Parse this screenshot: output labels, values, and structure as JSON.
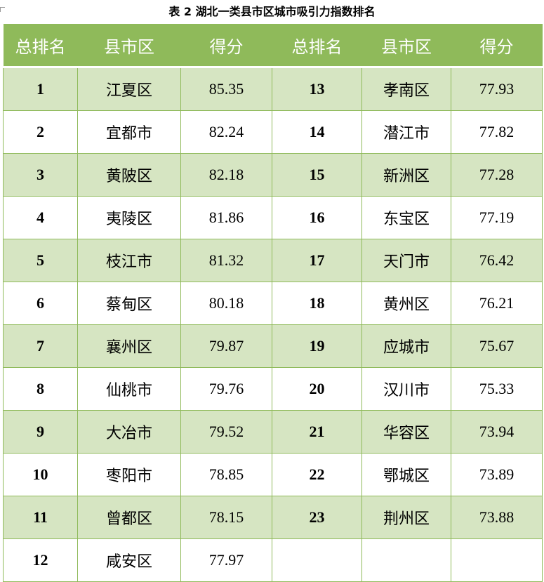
{
  "caption": "表 2 湖北一类县市区城市吸引力指数排名",
  "headers": [
    "总排名",
    "县市区",
    "得分",
    "总排名",
    "县市区",
    "得分"
  ],
  "rows": [
    {
      "rank_a": "1",
      "name_a": "江夏区",
      "score_a": "85.35",
      "rank_b": "13",
      "name_b": "孝南区",
      "score_b": "77.93"
    },
    {
      "rank_a": "2",
      "name_a": "宜都市",
      "score_a": "82.24",
      "rank_b": "14",
      "name_b": "潜江市",
      "score_b": "77.82"
    },
    {
      "rank_a": "3",
      "name_a": "黄陂区",
      "score_a": "82.18",
      "rank_b": "15",
      "name_b": "新洲区",
      "score_b": "77.28"
    },
    {
      "rank_a": "4",
      "name_a": "夷陵区",
      "score_a": "81.86",
      "rank_b": "16",
      "name_b": "东宝区",
      "score_b": "77.19"
    },
    {
      "rank_a": "5",
      "name_a": "枝江市",
      "score_a": "81.32",
      "rank_b": "17",
      "name_b": "天门市",
      "score_b": "76.42"
    },
    {
      "rank_a": "6",
      "name_a": "蔡甸区",
      "score_a": "80.18",
      "rank_b": "18",
      "name_b": "黄州区",
      "score_b": "76.21"
    },
    {
      "rank_a": "7",
      "name_a": "襄州区",
      "score_a": "79.87",
      "rank_b": "19",
      "name_b": "应城市",
      "score_b": "75.67"
    },
    {
      "rank_a": "8",
      "name_a": "仙桃市",
      "score_a": "79.76",
      "rank_b": "20",
      "name_b": "汉川市",
      "score_b": "75.33"
    },
    {
      "rank_a": "9",
      "name_a": "大冶市",
      "score_a": "79.52",
      "rank_b": "21",
      "name_b": "华容区",
      "score_b": "73.94"
    },
    {
      "rank_a": "10",
      "name_a": "枣阳市",
      "score_a": "78.85",
      "rank_b": "22",
      "name_b": "鄂城区",
      "score_b": "73.89"
    },
    {
      "rank_a": "11",
      "name_a": "曾都区",
      "score_a": "78.15",
      "rank_b": "23",
      "name_b": "荆州区",
      "score_b": "73.88"
    },
    {
      "rank_a": "12",
      "name_a": "咸安区",
      "score_a": "77.97",
      "rank_b": "",
      "name_b": "",
      "score_b": ""
    }
  ],
  "colors": {
    "header_bg": "#8fba5a",
    "band_bg": "#d6e5c2",
    "plain_bg": "#ffffff"
  }
}
